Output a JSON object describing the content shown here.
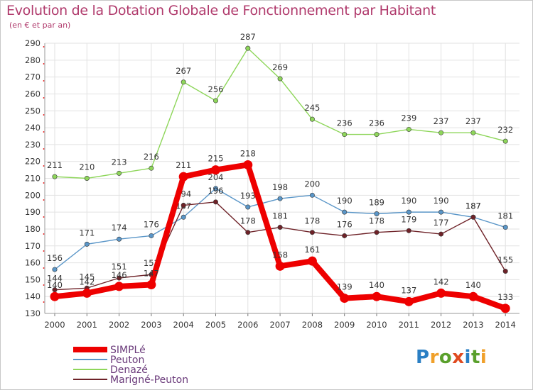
{
  "header": {
    "title": "Evolution de la Dotation Globale de Fonctionnement par Habitant",
    "subtitle": "(en € et par an)"
  },
  "logo": {
    "text": "Proxiti",
    "colors": [
      "#2a7fc4",
      "#f0a02a",
      "#5aa02c",
      "#e04a1f",
      "#2a7fc4",
      "#5aa02c",
      "#f0a02a"
    ]
  },
  "chart_data": {
    "type": "line",
    "categories": [
      "2000",
      "2001",
      "2002",
      "2003",
      "2004",
      "2005",
      "2006",
      "2007",
      "2008",
      "2009",
      "2010",
      "2011",
      "2012",
      "2013",
      "2014"
    ],
    "ylim": [
      130,
      290
    ],
    "yticks": [
      130,
      140,
      150,
      160,
      170,
      180,
      190,
      200,
      210,
      220,
      230,
      240,
      250,
      260,
      270,
      280,
      290
    ],
    "grid": true,
    "legend_position": "bottom-left",
    "series": [
      {
        "name": "SIMPLé",
        "color": "#ee0000",
        "values": [
          140,
          142,
          146,
          147,
          211,
          215,
          218,
          158,
          161,
          139,
          140,
          137,
          142,
          140,
          133
        ]
      },
      {
        "name": "Peuton",
        "color": "#5a96c8",
        "values": [
          156,
          171,
          174,
          176,
          187,
          204,
          193,
          198,
          200,
          190,
          189,
          190,
          190,
          187,
          181
        ]
      },
      {
        "name": "Denazé",
        "color": "#8ed65a",
        "values": [
          211,
          210,
          213,
          216,
          267,
          256,
          287,
          269,
          245,
          236,
          236,
          239,
          237,
          237,
          232
        ]
      },
      {
        "name": "Marigné-Peuton",
        "color": "#6e2228",
        "values": [
          144,
          145,
          151,
          153,
          194,
          196,
          178,
          181,
          178,
          176,
          178,
          179,
          177,
          187,
          155
        ]
      }
    ]
  }
}
